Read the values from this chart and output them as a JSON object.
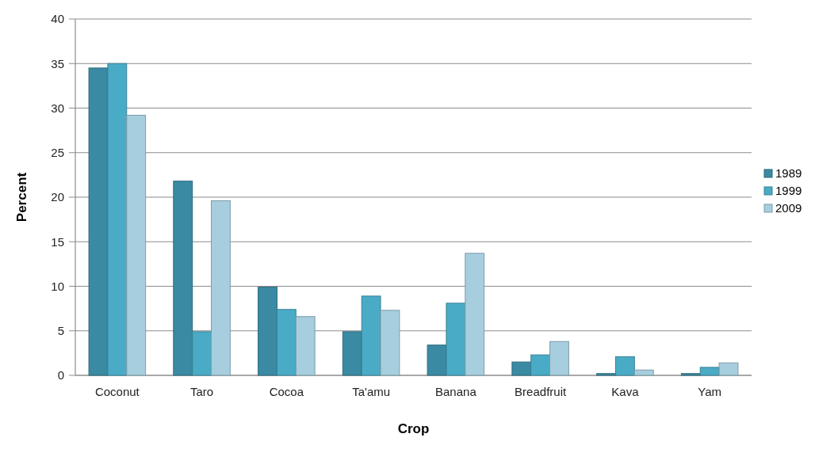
{
  "chart_data": {
    "type": "bar",
    "xlabel": "Crop",
    "ylabel": "Percent",
    "categories": [
      "Coconut",
      "Taro",
      "Cocoa",
      "Ta'amu",
      "Banana",
      "Breadfruit",
      "Kava",
      "Yam"
    ],
    "series": [
      {
        "name": "1989",
        "color": "#3a8aa3",
        "values": [
          34.5,
          21.8,
          9.9,
          4.9,
          3.4,
          1.5,
          0.2,
          0.2
        ]
      },
      {
        "name": "1999",
        "color": "#4aabc6",
        "values": [
          35,
          4.9,
          7.4,
          8.9,
          8.1,
          2.3,
          2.1,
          0.9
        ]
      },
      {
        "name": "2009",
        "color": "#a6cede",
        "values": [
          29.2,
          19.6,
          6.6,
          7.3,
          13.7,
          3.8,
          0.6,
          1.4
        ]
      }
    ],
    "ylim": [
      0,
      40
    ],
    "yticks": [
      0,
      5,
      10,
      15,
      20,
      25,
      30,
      35,
      40
    ],
    "grid": "y",
    "legend": "right"
  }
}
